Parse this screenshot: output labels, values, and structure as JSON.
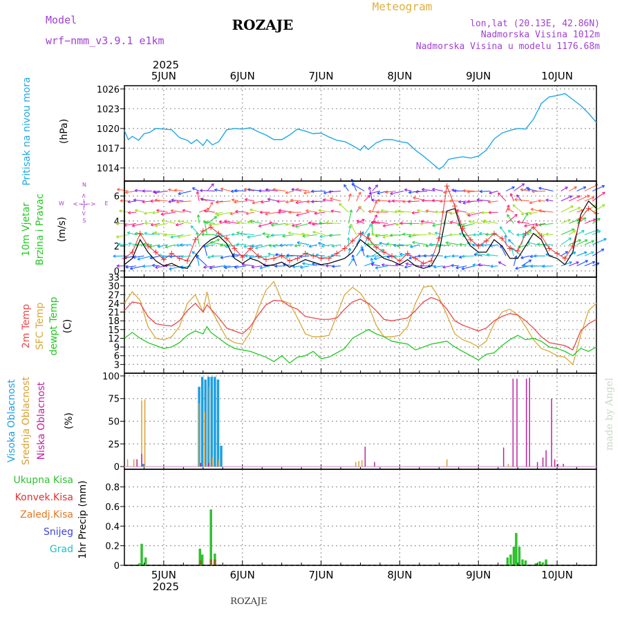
{
  "header": {
    "model_label": "Model",
    "model_name": "wrf−nmm_v3.9.1  e1km",
    "station": "ROZAJE",
    "product": "Meteogram",
    "coords": "lon,lat (20.13E, 42.86N)",
    "elevation": "Nadmorska Visina 1012m",
    "model_elevation": "Nadmorska Visina u modelu 1176.68m",
    "footer_station": "ROZAJE",
    "credit": "made by Angel"
  },
  "time_axis": {
    "year": "2025",
    "day_labels": [
      "5JUN",
      "6JUN",
      "7JUN",
      "8JUN",
      "9JUN",
      "10JUN"
    ],
    "start_day": 4.5,
    "end_day": 10.5
  },
  "colors": {
    "pressure": "#1ea8e6",
    "wind_speed": "#000000",
    "gust": "#e83030",
    "t2m": "#e84848",
    "sfc": "#d8a838",
    "dewpt": "#22c822",
    "cloud_high": "#1e9fe0",
    "cloud_mid": "#d8a030",
    "cloud_low": "#c020a0",
    "precip_total": "#30c030",
    "precip_conv": "#e03030",
    "precip_frozen": "#e07820",
    "snow": "#4040e0",
    "hail": "#20c0c0"
  },
  "chart_data": [
    {
      "type": "line",
      "name": "pressure",
      "ylabel": [
        "Pritisak na nivou mora",
        "(hPa)"
      ],
      "ylim": [
        1012,
        1026.5
      ],
      "yticks": [
        1014,
        1017,
        1020,
        1023,
        1026
      ],
      "series": [
        {
          "x": [
            4.5,
            4.55,
            4.6,
            4.68,
            4.75,
            4.82,
            4.9,
            5.0,
            5.1,
            5.2,
            5.3,
            5.35,
            5.42,
            5.5,
            5.55,
            5.62,
            5.7,
            5.8,
            5.9,
            6.0,
            6.1,
            6.2,
            6.3,
            6.4,
            6.5,
            6.6,
            6.7,
            6.8,
            6.9,
            7.0,
            7.1,
            7.2,
            7.3,
            7.4,
            7.5,
            7.55,
            7.6,
            7.7,
            7.8,
            7.9,
            8.0,
            8.1,
            8.2,
            8.3,
            8.4,
            8.5,
            8.55,
            8.62,
            8.7,
            8.8,
            8.9,
            9.0,
            9.1,
            9.2,
            9.3,
            9.4,
            9.5,
            9.6,
            9.7,
            9.8,
            9.9,
            10.0,
            10.1,
            10.2,
            10.3,
            10.4,
            10.5
          ],
          "y": [
            1019.7,
            1018.3,
            1018.8,
            1018.2,
            1019.2,
            1019.4,
            1020.0,
            1019.9,
            1019.8,
            1018.6,
            1018.2,
            1017.7,
            1018.3,
            1017.4,
            1018.3,
            1017.5,
            1018.0,
            1019.8,
            1020.0,
            1019.9,
            1020.1,
            1019.5,
            1019.0,
            1018.3,
            1018.3,
            1019.0,
            1019.9,
            1019.6,
            1019.2,
            1019.3,
            1018.7,
            1018.2,
            1018.0,
            1017.4,
            1016.7,
            1017.4,
            1016.8,
            1017.8,
            1018.3,
            1018.3,
            1018.0,
            1017.8,
            1016.7,
            1015.8,
            1014.8,
            1013.8,
            1014.2,
            1015.3,
            1015.5,
            1015.7,
            1015.5,
            1015.8,
            1016.7,
            1018.4,
            1019.3,
            1019.7,
            1020.0,
            1019.9,
            1021.4,
            1023.8,
            1024.8,
            1025.0,
            1025.3,
            1024.4,
            1023.5,
            1022.3,
            1020.9
          ]
        }
      ]
    },
    {
      "type": "line",
      "name": "wind",
      "ylabel": [
        "10m Vjetar",
        "Brzina i Pravac",
        "(m/s)"
      ],
      "compass": {
        "north": "N",
        "west": "W",
        "east": "E",
        "south": "S",
        "arrow": "<−|−>"
      },
      "ylim": [
        -0.5,
        7.2
      ],
      "yticks": [
        0,
        2,
        4,
        6
      ],
      "speed": {
        "x": [
          4.5,
          4.6,
          4.7,
          4.8,
          4.9,
          5.0,
          5.1,
          5.2,
          5.3,
          5.4,
          5.5,
          5.6,
          5.7,
          5.8,
          5.9,
          6.0,
          6.1,
          6.2,
          6.3,
          6.4,
          6.5,
          6.6,
          6.7,
          6.8,
          6.9,
          7.0,
          7.1,
          7.2,
          7.3,
          7.4,
          7.5,
          7.6,
          7.7,
          7.8,
          7.9,
          8.0,
          8.1,
          8.2,
          8.3,
          8.4,
          8.5,
          8.6,
          8.7,
          8.8,
          8.9,
          9.0,
          9.1,
          9.2,
          9.3,
          9.4,
          9.5,
          9.6,
          9.7,
          9.8,
          9.9,
          10.0,
          10.1,
          10.2,
          10.3,
          10.4,
          10.5
        ],
        "y": [
          0.5,
          1.0,
          2.5,
          1.5,
          0.8,
          0.4,
          0.6,
          0.3,
          0.2,
          1.2,
          2.0,
          2.5,
          2.8,
          2.2,
          1.0,
          0.6,
          1.0,
          0.8,
          0.4,
          0.5,
          0.7,
          0.3,
          0.6,
          0.9,
          0.7,
          0.5,
          0.6,
          0.8,
          1.0,
          1.5,
          2.5,
          2.0,
          1.5,
          1.0,
          0.8,
          0.5,
          0.9,
          0.4,
          0.2,
          0.4,
          1.5,
          4.8,
          5.0,
          3.0,
          2.0,
          1.5,
          1.5,
          2.5,
          2.0,
          1.0,
          1.0,
          2.0,
          3.0,
          2.5,
          1.2,
          1.0,
          0.5,
          1.5,
          4.5,
          5.6,
          5.0
        ]
      },
      "gust": {
        "x": [
          4.5,
          4.6,
          4.7,
          4.8,
          4.9,
          5.0,
          5.1,
          5.2,
          5.3,
          5.4,
          5.5,
          5.6,
          5.7,
          5.8,
          5.9,
          6.0,
          6.1,
          6.2,
          6.3,
          6.4,
          6.5,
          6.6,
          6.7,
          6.8,
          6.9,
          7.0,
          7.1,
          7.2,
          7.3,
          7.4,
          7.5,
          7.6,
          7.7,
          7.8,
          7.9,
          8.0,
          8.1,
          8.2,
          8.3,
          8.4,
          8.5,
          8.6,
          8.7,
          8.8,
          8.9,
          9.0,
          9.1,
          9.2,
          9.3,
          9.4,
          9.5,
          9.6,
          9.7,
          9.8,
          9.9,
          10.0,
          10.1,
          10.2,
          10.3,
          10.4,
          10.5
        ],
        "y": [
          1.0,
          1.5,
          3.0,
          2.0,
          1.5,
          0.9,
          1.4,
          1.0,
          0.8,
          2.5,
          3.2,
          3.5,
          3.0,
          2.6,
          1.8,
          1.1,
          1.8,
          1.2,
          0.9,
          1.0,
          1.2,
          0.8,
          1.0,
          1.4,
          1.2,
          1.0,
          1.0,
          1.4,
          1.8,
          2.4,
          3.0,
          2.6,
          1.9,
          1.5,
          1.2,
          0.8,
          1.4,
          1.0,
          0.6,
          0.8,
          2.6,
          6.8,
          5.2,
          3.4,
          2.5,
          2.0,
          2.4,
          3.0,
          2.6,
          1.8,
          1.6,
          3.0,
          3.5,
          2.8,
          1.8,
          1.4,
          1.0,
          2.0,
          4.2,
          5.0,
          4.6
        ]
      },
      "arrow_rows": [
        0.4,
        1.2,
        2.1,
        2.9,
        3.8,
        4.7,
        5.6,
        6.4
      ],
      "arrow_colors": [
        "#8a2be2",
        "#2050ff",
        "#00a0ff",
        "#20d0c0",
        "#30d040",
        "#a0e020",
        "#ff2080",
        "#ff6040"
      ]
    },
    {
      "type": "line",
      "name": "temperature",
      "ylabel": [
        "2m Temp",
        "SFC Temp",
        "dewpt Temp",
        "(C)"
      ],
      "ylim": [
        0,
        33
      ],
      "yticks": [
        3,
        6,
        9,
        12,
        15,
        18,
        21,
        24,
        27,
        30,
        33
      ],
      "t2m": {
        "x": [
          4.5,
          4.6,
          4.7,
          4.8,
          4.9,
          5.0,
          5.1,
          5.2,
          5.3,
          5.4,
          5.5,
          5.55,
          5.6,
          5.7,
          5.8,
          5.9,
          6.0,
          6.1,
          6.2,
          6.3,
          6.4,
          6.5,
          6.6,
          6.7,
          6.8,
          6.9,
          7.0,
          7.1,
          7.2,
          7.3,
          7.4,
          7.5,
          7.6,
          7.7,
          7.8,
          7.9,
          8.0,
          8.1,
          8.2,
          8.3,
          8.4,
          8.5,
          8.6,
          8.7,
          8.8,
          8.9,
          9.0,
          9.1,
          9.2,
          9.3,
          9.4,
          9.5,
          9.6,
          9.7,
          9.8,
          9.9,
          10.0,
          10.1,
          10.2,
          10.3,
          10.4,
          10.5
        ],
        "y": [
          21.5,
          24.5,
          24.0,
          19.5,
          17.0,
          16.5,
          16.2,
          18.0,
          21.5,
          24.0,
          21.0,
          23.5,
          22.0,
          19.0,
          15.5,
          14.5,
          13.5,
          16.0,
          20.0,
          23.5,
          25.0,
          24.8,
          23.0,
          22.0,
          19.5,
          19.0,
          18.5,
          18.5,
          19.0,
          22.0,
          24.5,
          25.5,
          24.0,
          21.5,
          18.5,
          18.0,
          18.5,
          19.0,
          21.5,
          24.5,
          26.0,
          25.0,
          22.0,
          18.0,
          16.5,
          15.5,
          14.5,
          15.5,
          18.0,
          19.5,
          20.5,
          20.0,
          18.0,
          15.5,
          12.5,
          10.5,
          10.0,
          9.5,
          8.0,
          14.5,
          17.0,
          18.5
        ]
      },
      "sfc": {
        "x": [
          4.5,
          4.6,
          4.7,
          4.8,
          4.9,
          5.0,
          5.1,
          5.2,
          5.3,
          5.4,
          5.5,
          5.55,
          5.6,
          5.7,
          5.8,
          5.9,
          6.0,
          6.1,
          6.2,
          6.3,
          6.4,
          6.5,
          6.6,
          6.7,
          6.8,
          6.9,
          7.0,
          7.1,
          7.2,
          7.3,
          7.4,
          7.5,
          7.6,
          7.7,
          7.8,
          7.9,
          8.0,
          8.1,
          8.2,
          8.3,
          8.4,
          8.5,
          8.6,
          8.7,
          8.8,
          8.9,
          9.0,
          9.1,
          9.2,
          9.3,
          9.4,
          9.5,
          9.6,
          9.7,
          9.8,
          9.9,
          10.0,
          10.1,
          10.2,
          10.3,
          10.4,
          10.5
        ],
        "y": [
          24.0,
          28.0,
          25.0,
          16.0,
          12.0,
          11.5,
          12.5,
          16.0,
          24.0,
          27.0,
          21.0,
          28.0,
          22.0,
          17.0,
          12.0,
          10.5,
          10.0,
          14.0,
          22.0,
          28.5,
          31.5,
          25.0,
          24.0,
          19.0,
          13.5,
          12.5,
          12.5,
          13.0,
          20.0,
          27.0,
          29.5,
          27.5,
          23.5,
          16.5,
          12.5,
          12.5,
          13.0,
          16.0,
          24.0,
          29.5,
          30.0,
          26.0,
          20.0,
          13.5,
          11.5,
          10.5,
          9.0,
          11.0,
          17.0,
          21.0,
          22.0,
          20.0,
          16.0,
          11.5,
          8.5,
          7.5,
          6.0,
          5.5,
          3.0,
          13.0,
          21.5,
          24.0
        ]
      },
      "dewpt": {
        "x": [
          4.5,
          4.6,
          4.7,
          4.8,
          4.9,
          5.0,
          5.1,
          5.2,
          5.3,
          5.4,
          5.5,
          5.55,
          5.6,
          5.7,
          5.8,
          5.9,
          6.0,
          6.1,
          6.2,
          6.3,
          6.4,
          6.5,
          6.6,
          6.7,
          6.8,
          6.9,
          7.0,
          7.1,
          7.2,
          7.3,
          7.4,
          7.5,
          7.6,
          7.7,
          7.8,
          7.9,
          8.0,
          8.1,
          8.2,
          8.3,
          8.4,
          8.5,
          8.6,
          8.7,
          8.8,
          8.9,
          9.0,
          9.1,
          9.2,
          9.3,
          9.4,
          9.5,
          9.6,
          9.7,
          9.8,
          9.9,
          10.0,
          10.1,
          10.2,
          10.3,
          10.4,
          10.5
        ],
        "y": [
          12.0,
          14.0,
          12.0,
          10.5,
          9.5,
          8.5,
          9.0,
          10.5,
          13.0,
          14.5,
          13.5,
          16.0,
          14.0,
          12.0,
          10.0,
          8.5,
          8.0,
          7.5,
          6.5,
          5.5,
          4.0,
          6.0,
          3.5,
          5.5,
          6.0,
          7.5,
          5.0,
          5.5,
          7.0,
          8.5,
          12.0,
          13.5,
          15.0,
          13.5,
          12.5,
          11.0,
          10.5,
          10.0,
          8.0,
          9.0,
          10.0,
          10.5,
          11.0,
          9.0,
          7.5,
          6.0,
          4.5,
          6.5,
          7.0,
          9.5,
          11.5,
          13.0,
          11.5,
          12.0,
          11.0,
          9.0,
          8.5,
          7.5,
          6.0,
          8.5,
          7.5,
          9.0
        ]
      }
    },
    {
      "type": "bar",
      "name": "clouds",
      "ylabel": [
        "Visoka Oblacnost",
        "Srednja Oblacnost",
        "Niska Oblacnost",
        "(%)"
      ],
      "ylim": [
        -3,
        103
      ],
      "yticks": [
        0,
        25,
        50,
        75,
        100
      ],
      "high": {
        "x": [
          4.74,
          5.45,
          5.49,
          5.53,
          5.57,
          5.61,
          5.65,
          5.69,
          5.73
        ],
        "y": [
          3,
          88,
          99,
          96,
          99,
          99,
          99,
          96,
          23
        ]
      },
      "mid": {
        "x": [
          4.54,
          4.62,
          4.66,
          4.72,
          4.76,
          5.45,
          5.52,
          5.58,
          5.62,
          5.7,
          7.44,
          7.48,
          7.52,
          8.6,
          9.38
        ],
        "y": [
          8,
          8,
          8,
          73,
          74,
          70,
          60,
          88,
          10,
          8,
          5,
          6,
          7,
          8,
          3
        ]
      },
      "low": {
        "x": [
          4.66,
          4.72,
          5.47,
          5.57,
          7.56,
          7.68,
          9.32,
          9.44,
          9.49,
          9.61,
          9.65,
          9.75,
          9.82,
          9.86,
          9.93,
          9.97,
          10.01,
          10.08
        ],
        "y": [
          8,
          14,
          4,
          4,
          22,
          5,
          21,
          97,
          97,
          97,
          98,
          5,
          10,
          18,
          75,
          8,
          3,
          3
        ]
      }
    },
    {
      "type": "bar",
      "name": "precipitation",
      "ylabel": [
        "Ukupna  Kisa",
        "Konvek.Kisa",
        "Zaledj.Kisa",
        "Snijeg",
        "Grad",
        "1hr Precip (mm)"
      ],
      "ylim": [
        0,
        0.98
      ],
      "yticks": [
        0,
        0.2,
        0.4,
        0.6,
        0.8
      ],
      "ytick_labels": [
        "0",
        "0.2",
        "0.4",
        "0.6",
        "0.8"
      ],
      "total": {
        "x": [
          4.69,
          4.72,
          4.77,
          5.46,
          5.49,
          5.6,
          5.65,
          9.37,
          9.41,
          9.45,
          9.48,
          9.52,
          9.56,
          9.6,
          9.73,
          9.78,
          9.82,
          9.86
        ],
        "y": [
          0.02,
          0.22,
          0.08,
          0.17,
          0.11,
          0.57,
          0.12,
          0.08,
          0.11,
          0.19,
          0.33,
          0.19,
          0.06,
          0.05,
          0.02,
          0.04,
          0.03,
          0.06
        ]
      },
      "convective": {
        "x": [
          5.47,
          5.6,
          5.65
        ],
        "y": [
          0.05,
          0.06,
          0.06
        ]
      }
    }
  ]
}
